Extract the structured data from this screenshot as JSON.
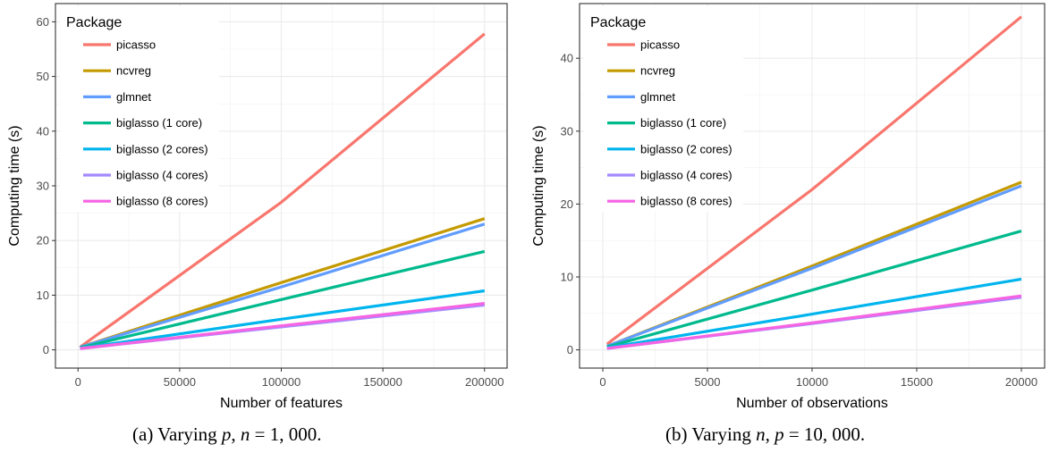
{
  "chart_data": [
    {
      "type": "line",
      "xlabel": "Number of features",
      "ylabel": "Computing time (s)",
      "xlim": [
        0,
        200000
      ],
      "ylim": [
        0,
        60
      ],
      "xticks": [
        0,
        50000,
        100000,
        150000,
        200000
      ],
      "xtick_labels": [
        "0",
        "50000",
        "100000",
        "150000",
        "200000"
      ],
      "yticks": [
        0,
        10,
        20,
        30,
        40,
        50,
        60
      ],
      "ytick_labels": [
        "0",
        "10",
        "20",
        "30",
        "40",
        "50",
        "60"
      ],
      "grid": true,
      "legend": {
        "title": "Package",
        "position": "top-left"
      },
      "x": [
        1000,
        100000,
        200000
      ],
      "series": [
        {
          "name": "picasso",
          "color": "#F8766D",
          "values": [
            0.5,
            27,
            57.8
          ]
        },
        {
          "name": "ncvreg",
          "color": "#C49A00",
          "values": [
            0.5,
            12.3,
            24
          ]
        },
        {
          "name": "glmnet",
          "color": "#619CFF",
          "values": [
            0.5,
            11.5,
            23
          ]
        },
        {
          "name": "biglasso (1 core)",
          "color": "#00BA8D",
          "values": [
            0.4,
            9.2,
            18
          ]
        },
        {
          "name": "biglasso (2 cores)",
          "color": "#00B5EE",
          "values": [
            0.3,
            5.6,
            10.8
          ]
        },
        {
          "name": "biglasso (4 cores)",
          "color": "#A58AFF",
          "values": [
            0.25,
            4.2,
            8.2
          ]
        },
        {
          "name": "biglasso (8 cores)",
          "color": "#F564E3",
          "values": [
            0.25,
            4.4,
            8.5
          ]
        }
      ]
    },
    {
      "type": "line",
      "xlabel": "Number of observations",
      "ylabel": "Computing time (s)",
      "xlim": [
        0,
        20000
      ],
      "ylim": [
        0,
        45
      ],
      "xticks": [
        0,
        5000,
        10000,
        15000,
        20000
      ],
      "xtick_labels": [
        "0",
        "5000",
        "10000",
        "15000",
        "20000"
      ],
      "yticks": [
        0,
        10,
        20,
        30,
        40
      ],
      "ytick_labels": [
        "0",
        "10",
        "20",
        "30",
        "40"
      ],
      "grid": true,
      "legend": {
        "title": "Package",
        "position": "top-left"
      },
      "x": [
        200,
        10000,
        20000
      ],
      "series": [
        {
          "name": "picasso",
          "color": "#F8766D",
          "values": [
            0.8,
            22,
            45.7
          ]
        },
        {
          "name": "ncvreg",
          "color": "#C49A00",
          "values": [
            0.5,
            11.5,
            23
          ]
        },
        {
          "name": "glmnet",
          "color": "#619CFF",
          "values": [
            0.5,
            11.2,
            22.5
          ]
        },
        {
          "name": "biglasso (1 core)",
          "color": "#00BA8D",
          "values": [
            0.4,
            8.2,
            16.3
          ]
        },
        {
          "name": "biglasso (2 cores)",
          "color": "#00B5EE",
          "values": [
            0.3,
            4.9,
            9.7
          ]
        },
        {
          "name": "biglasso (4 cores)",
          "color": "#A58AFF",
          "values": [
            0.2,
            3.6,
            7.2
          ]
        },
        {
          "name": "biglasso (8 cores)",
          "color": "#F564E3",
          "values": [
            0.2,
            3.7,
            7.4
          ]
        }
      ]
    }
  ],
  "captions": {
    "a": {
      "prefix": "(a) Varying ",
      "var1": "p",
      "mid": ", ",
      "var2": "n",
      "suffix": " = 1, 000."
    },
    "b": {
      "prefix": "(b) Varying ",
      "var1": "n",
      "mid": ", ",
      "var2": "p",
      "suffix": " = 10, 000."
    }
  }
}
